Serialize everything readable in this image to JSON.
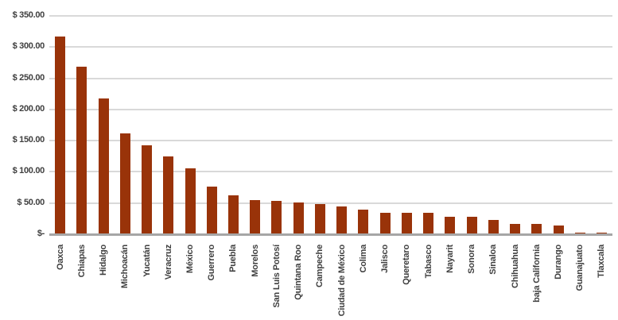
{
  "chart_data": {
    "type": "bar",
    "title": "",
    "xlabel": "",
    "ylabel": "",
    "categories": [
      "Oaxca",
      "Chiapas",
      "Hidalgo",
      "Michoacán",
      "Yucatán",
      "Veracruz",
      "México",
      "Guerrero",
      "Puebla",
      "Morelos",
      "San Luis Potosí",
      "Quintana Roo",
      "Campeche",
      "Ciudad de México",
      "Colima",
      "Jalisco",
      "Queretaro",
      "Tabasco",
      "Nayarit",
      "Sonora",
      "Sinaloa",
      "Chihuahua",
      "baja California",
      "Durango",
      "Guanajuato",
      "Tlaxcala"
    ],
    "values": [
      317,
      268,
      218,
      162,
      142,
      125,
      106,
      76,
      62,
      55,
      53,
      51,
      48,
      45,
      39,
      35,
      35,
      35,
      28,
      28,
      23,
      17,
      16,
      14,
      2.5,
      2
    ],
    "y_tick_labels": [
      "$ 350.00",
      "$ 300.00",
      "$ 250.00",
      "$ 200.00",
      "$ 150.00",
      "$ 100.00",
      "$ 50.00",
      "$-"
    ],
    "y_tick_values": [
      350,
      300,
      250,
      200,
      150,
      100,
      50,
      0
    ],
    "ylim": [
      0,
      350
    ],
    "gridline_step": 50,
    "grid": true,
    "legend": false,
    "bar_color": "#993309",
    "gridline_color": "#d9d9d9",
    "axis_line_color": "#a6a6a6",
    "tick_label_color": "#3f3f3f",
    "background_color": "#ffffff"
  }
}
